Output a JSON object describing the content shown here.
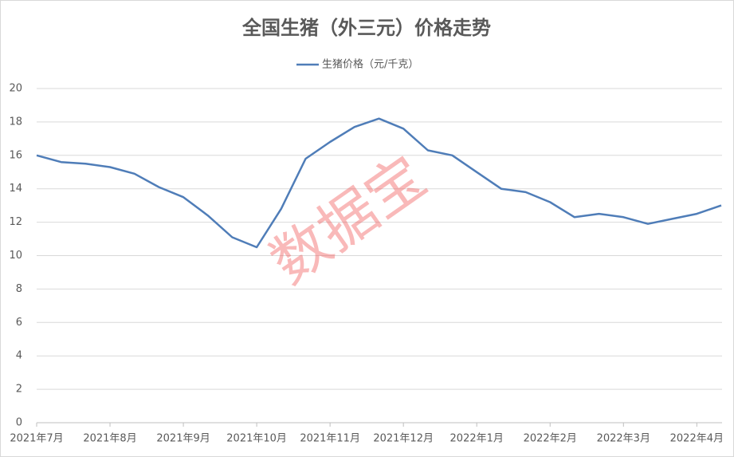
{
  "chart_data": {
    "type": "line",
    "title": "全国生猪（外三元）价格走势",
    "watermark": "数据宝",
    "categories": [
      "2021年7月",
      null,
      null,
      "2021年8月",
      null,
      null,
      "2021年9月",
      null,
      null,
      "2021年10月",
      null,
      null,
      "2021年11月",
      null,
      null,
      "2021年12月",
      null,
      null,
      "2022年1月",
      null,
      null,
      "2022年2月",
      null,
      null,
      "2022年3月",
      null,
      null,
      "2022年4月",
      null
    ],
    "series": [
      {
        "name": "生猪价格（元/千克）",
        "color": "#4f7db8",
        "values": [
          16.0,
          15.6,
          15.5,
          15.3,
          14.9,
          14.1,
          13.5,
          12.4,
          11.1,
          10.5,
          12.8,
          15.8,
          16.8,
          17.7,
          18.2,
          17.6,
          16.3,
          16.0,
          15.0,
          14.0,
          13.8,
          13.2,
          12.3,
          12.5,
          12.3,
          11.9,
          12.2,
          12.5,
          13.0
        ]
      }
    ],
    "ylim": [
      0,
      20
    ],
    "yticks": [
      0,
      2,
      4,
      6,
      8,
      10,
      12,
      14,
      16,
      18,
      20
    ],
    "grid": true,
    "legend": "top"
  }
}
